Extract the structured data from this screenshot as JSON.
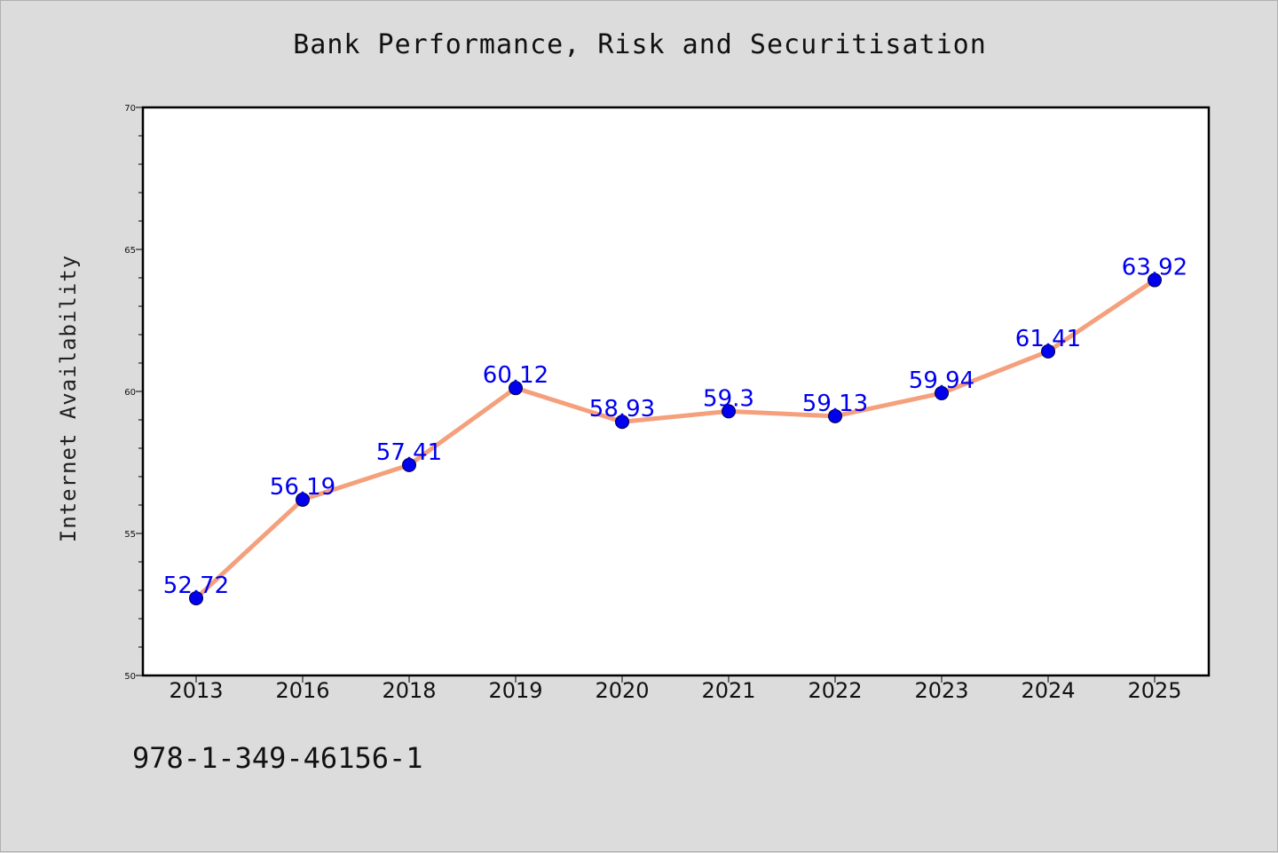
{
  "chart_data": {
    "type": "line",
    "title": "Bank Performance, Risk and Securitisation",
    "xlabel": "",
    "ylabel": "Internet Availability",
    "categories": [
      "2013",
      "2016",
      "2018",
      "2019",
      "2020",
      "2021",
      "2022",
      "2023",
      "2024",
      "2025"
    ],
    "values": [
      52.72,
      56.19,
      57.41,
      60.12,
      58.93,
      59.3,
      59.13,
      59.94,
      61.41,
      63.92
    ],
    "data_labels": [
      "52.72",
      "56.19",
      "57.41",
      "60.12",
      "58.93",
      "59.3",
      "59.13",
      "59.94",
      "61.41",
      "63.92"
    ],
    "ylim": [
      50,
      70
    ],
    "yticks": [
      50,
      55,
      60,
      65,
      70
    ],
    "grid": false,
    "line_color": "#f4a07c",
    "marker_color": "#0000ee",
    "label_color": "#0000ee"
  },
  "footer": {
    "isbn": "978-1-349-46156-1"
  }
}
